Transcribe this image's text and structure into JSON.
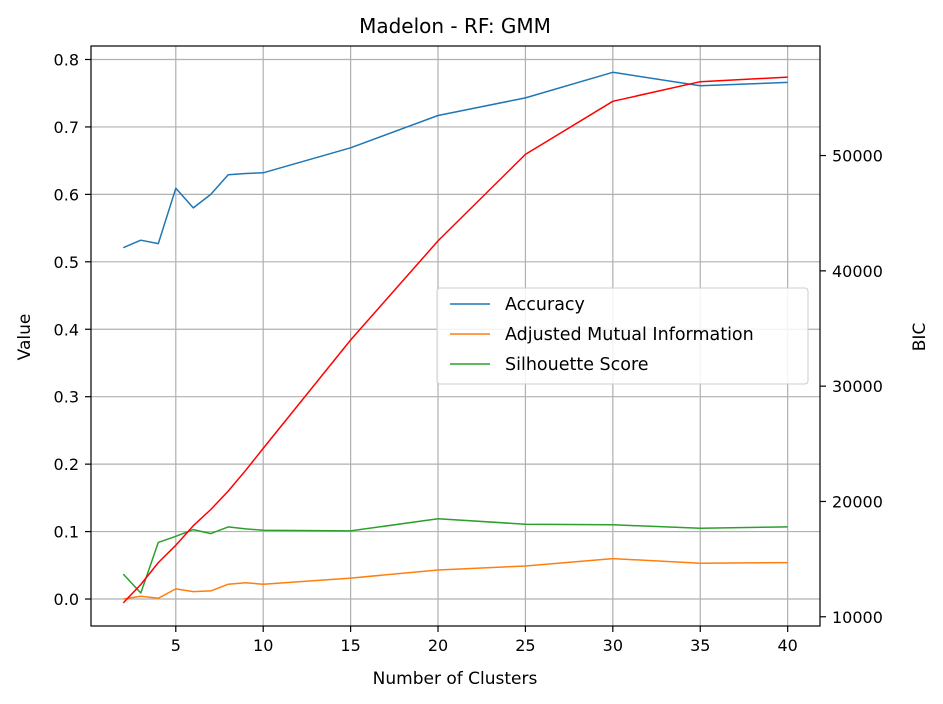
{
  "chart_data": {
    "type": "line",
    "title": "Madelon - RF: GMM",
    "xlabel": "Number of Clusters",
    "ylabel": "Value",
    "y2label": "BIC",
    "xlim": [
      0.15,
      41.85
    ],
    "ylim": [
      -0.04,
      0.82
    ],
    "y2lim": [
      9200,
      59500
    ],
    "x_ticks": [
      5,
      10,
      15,
      20,
      25,
      30,
      35,
      40
    ],
    "y_ticks": [
      0.0,
      0.1,
      0.2,
      0.3,
      0.4,
      0.5,
      0.6,
      0.7,
      0.8
    ],
    "y2_ticks": [
      10000,
      20000,
      30000,
      40000,
      50000
    ],
    "grid": true,
    "legend_position": "center-right",
    "x": [
      2,
      3,
      4,
      5,
      6,
      7,
      8,
      9,
      10,
      15,
      20,
      25,
      30,
      35,
      40
    ],
    "series": [
      {
        "name": "Accuracy",
        "color": "#1f77b4",
        "axis": "left",
        "values": [
          0.521,
          0.532,
          0.527,
          0.609,
          0.58,
          0.6,
          0.629,
          0.631,
          0.632,
          0.669,
          0.717,
          0.743,
          0.781,
          0.761,
          0.766
        ]
      },
      {
        "name": "Adjusted Mutual Information",
        "color": "#ff7f0e",
        "axis": "left",
        "values": [
          0.0,
          0.004,
          0.001,
          0.015,
          0.011,
          0.012,
          0.022,
          0.024,
          0.022,
          0.031,
          0.043,
          0.049,
          0.06,
          0.053,
          0.054
        ]
      },
      {
        "name": "Silhouette Score",
        "color": "#2ca02c",
        "axis": "left",
        "values": [
          0.037,
          0.009,
          0.084,
          0.093,
          0.103,
          0.097,
          0.107,
          0.104,
          0.102,
          0.101,
          0.119,
          0.111,
          0.11,
          0.105,
          0.107
        ]
      },
      {
        "name": "",
        "color": "#ff0000",
        "axis": "right",
        "values": [
          11200,
          12800,
          14700,
          16200,
          17900,
          19300,
          20900,
          22700,
          24600,
          34000,
          42600,
          50100,
          54700,
          56400,
          56800
        ]
      }
    ]
  }
}
